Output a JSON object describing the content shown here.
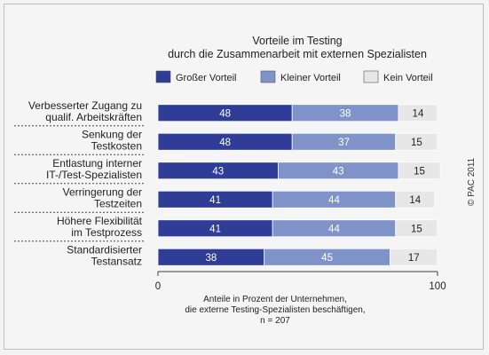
{
  "chart_data": {
    "type": "bar",
    "orientation": "horizontal",
    "stacked": true,
    "title": "Vorteile im Testing",
    "subtitle": "durch die Zusammenarbeit mit externen Spezialisten",
    "categories": [
      "Verbesserter Zugang zu\nqualif. Arbeitskräften",
      "Senkung der\nTestkosten",
      "Entlastung interner\nIT-/Test-Spezialisten",
      "Verringerung der\nTestzeiten",
      "Höhere Flexibilität\nim Testprozess",
      "Standardisierter\nTestansatz"
    ],
    "series": [
      {
        "name": "Großer Vorteil",
        "color": "#2f3d96",
        "values": [
          48,
          48,
          43,
          41,
          41,
          38
        ]
      },
      {
        "name": "Kleiner Vorteil",
        "color": "#7f93c9",
        "values": [
          38,
          37,
          43,
          44,
          44,
          45
        ]
      },
      {
        "name": "Kein Vorteil",
        "color": "#e7e7e7",
        "values": [
          14,
          15,
          15,
          14,
          15,
          17
        ]
      }
    ],
    "xlim": [
      0,
      100
    ],
    "xticks": [
      "0",
      "100"
    ],
    "xlabel_lines": [
      "Anteile in Prozent der Unternehmen,",
      "die externe Testing-Spezialisten beschäftigen,",
      "n = 207"
    ],
    "legend_position": "top",
    "grid": false,
    "copyright": "© PAC 2011"
  }
}
